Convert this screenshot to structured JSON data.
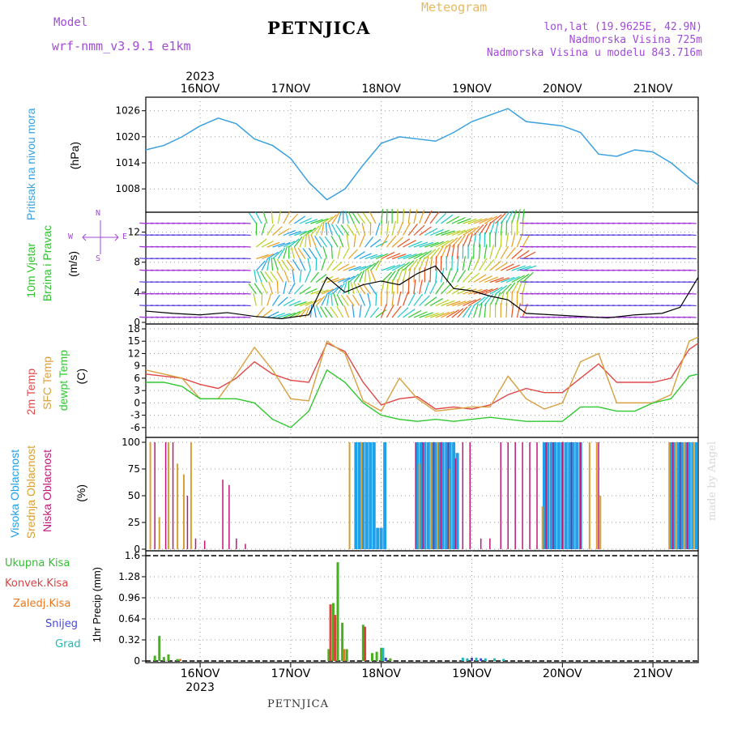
{
  "header": {
    "title": "PETNJICA",
    "model_label": "Model",
    "model_name": "wrf-nmm_v3.9.1 e1km",
    "product": "Meteogram",
    "coords": "lon,lat (19.9625E, 42.9N)",
    "elevation": "Nadmorska Visina 725m",
    "model_elevation": "Nadmorska Visina u modelu 843.716m",
    "footer": "PETNJICA",
    "credit": "made by Angel"
  },
  "time_axis": {
    "year_label": "2023",
    "days": [
      "16NOV",
      "17NOV",
      "18NOV",
      "19NOV",
      "20NOV",
      "21NOV"
    ],
    "day_positions": [
      1,
      2,
      3,
      4,
      5,
      6
    ],
    "range": [
      0.4,
      6.5
    ]
  },
  "panels": {
    "pressure": {
      "label": "Pritisak na nivou mora",
      "unit": "(hPa)"
    },
    "wind": {
      "label1": "10m Vjetar",
      "label2": "Brzina i Pravac",
      "unit": "(m/s)",
      "compass_n": "N",
      "compass_s": "S",
      "compass_w": "W",
      "compass_e": "E"
    },
    "temp": {
      "label1": "2m Temp",
      "label2": "SFC Temp",
      "label3": "dewpt Temp",
      "unit": "(C)"
    },
    "cloud": {
      "label1": "Visoka Oblacnost",
      "label2": "Srednja Oblacnost",
      "label3": "Niska Oblacnost",
      "unit": "(%)"
    },
    "precip": {
      "legend": [
        "Ukupna Kisa",
        "Konvek.Kisa",
        "Zaledj.Kisa",
        "Snijeg",
        "Grad"
      ],
      "ylabel": "1hr Precip (mm)"
    }
  },
  "colors": {
    "pressure": "#3aa0e0",
    "t2m": "#e04848",
    "tsfc": "#d8a040",
    "dewpt": "#30c830",
    "cloud_high": "#20a0e8",
    "cloud_mid": "#d8a030",
    "cloud_low": "#c01878",
    "rain_total": "#48b020",
    "rain_conv": "#e04040",
    "rain_frz": "#e87820",
    "snow": "#4848d8",
    "hail": "#20b8b8",
    "grid": "#9a9a9a",
    "text_purple": "#a24bd8"
  },
  "chart_data": [
    {
      "type": "line",
      "name": "pressure",
      "ylim": [
        1003,
        1028
      ],
      "yticks": [
        1008,
        1014,
        1020,
        1026
      ],
      "x": [
        0.4,
        0.6,
        0.8,
        1.0,
        1.2,
        1.4,
        1.6,
        1.8,
        2.0,
        2.2,
        2.4,
        2.6,
        2.8,
        3.0,
        3.2,
        3.4,
        3.6,
        3.8,
        4.0,
        4.2,
        4.4,
        4.6,
        4.8,
        5.0,
        5.2,
        5.4,
        5.6,
        5.8,
        6.0,
        6.2,
        6.4,
        6.5
      ],
      "series": [
        {
          "values": [
            1017,
            1018,
            1020,
            1022.5,
            1024.3,
            1023,
            1019.5,
            1018,
            1015,
            1009.5,
            1005.5,
            1008,
            1013.5,
            1018.5,
            1020,
            1019.5,
            1019,
            1021,
            1023.5,
            1025,
            1026.5,
            1023.5,
            1023,
            1022.5,
            1021,
            1016,
            1015.5,
            1017,
            1016.5,
            1014,
            1010.5,
            1009
          ]
        }
      ]
    },
    {
      "type": "line",
      "name": "wind_speed",
      "ylim": [
        0,
        14
      ],
      "yticks": [
        0,
        4,
        8,
        12
      ],
      "x": [
        0.4,
        0.7,
        1.0,
        1.3,
        1.6,
        1.9,
        2.2,
        2.4,
        2.6,
        2.8,
        3.0,
        3.2,
        3.4,
        3.6,
        3.8,
        4.0,
        4.2,
        4.4,
        4.6,
        4.9,
        5.2,
        5.5,
        5.8,
        6.1,
        6.3,
        6.5
      ],
      "series": [
        {
          "values": [
            1.5,
            1.2,
            1.0,
            1.3,
            0.8,
            0.5,
            1.0,
            6.0,
            4.0,
            5.0,
            5.5,
            5.0,
            6.5,
            7.5,
            4.5,
            4.2,
            3.5,
            3.0,
            1.2,
            1.0,
            0.8,
            0.6,
            1.0,
            1.2,
            2.0,
            6.0
          ]
        }
      ]
    },
    {
      "type": "line",
      "name": "temperature",
      "ylim": [
        -8,
        18
      ],
      "yticks": [
        -6,
        -3,
        0,
        3,
        6,
        9,
        12,
        15,
        18
      ],
      "x": [
        0.4,
        0.6,
        0.8,
        1.0,
        1.2,
        1.4,
        1.6,
        1.8,
        2.0,
        2.2,
        2.4,
        2.6,
        2.8,
        3.0,
        3.2,
        3.4,
        3.6,
        3.8,
        4.0,
        4.2,
        4.4,
        4.6,
        4.8,
        5.0,
        5.2,
        5.4,
        5.6,
        5.8,
        6.0,
        6.2,
        6.4,
        6.5
      ],
      "series": [
        {
          "name": "2m Temp",
          "values": [
            7,
            6.5,
            6,
            4.5,
            3.5,
            6,
            10,
            7,
            5.5,
            5,
            14.5,
            12.5,
            5,
            -0.5,
            1,
            1.5,
            -1.5,
            -1,
            -1.5,
            -0.5,
            2,
            3.5,
            2.5,
            2.5,
            6,
            9.5,
            5,
            5,
            5,
            6,
            13,
            14.5
          ]
        },
        {
          "name": "SFC Temp",
          "values": [
            8,
            7,
            6,
            1,
            1,
            7,
            13.5,
            8,
            1,
            0.5,
            15,
            12,
            0.5,
            -2,
            6,
            1,
            -2,
            -1.5,
            -1,
            -1,
            6.5,
            1,
            -1.5,
            0,
            10,
            12,
            0,
            0,
            0,
            2,
            15,
            16
          ]
        },
        {
          "name": "dewpt Temp",
          "values": [
            5,
            5,
            4,
            1,
            1,
            1,
            0,
            -4,
            -6,
            -2,
            8,
            5,
            0,
            -3,
            -4,
            -4.5,
            -4,
            -4.5,
            -4,
            -3.5,
            -4,
            -4.5,
            -4.5,
            -4.5,
            -1,
            -1,
            -2,
            -2,
            0,
            1,
            6.5,
            7
          ]
        }
      ]
    },
    {
      "type": "bar",
      "name": "cloud_cover",
      "ylim": [
        0,
        100
      ],
      "yticks": [
        0,
        25,
        50,
        75,
        100
      ],
      "series": [
        {
          "name": "Visoka Oblacnost",
          "x": [
            2.72,
            2.76,
            2.8,
            2.84,
            2.88,
            2.92,
            2.96,
            3.0,
            3.04,
            3.4,
            3.44,
            3.48,
            3.52,
            3.56,
            3.6,
            3.64,
            3.68,
            3.72,
            3.76,
            3.8,
            3.84,
            4.8,
            4.84,
            4.88,
            4.92,
            4.96,
            5.0,
            5.04,
            5.08,
            5.12,
            5.16,
            5.2,
            6.2,
            6.24,
            6.28,
            6.32,
            6.36,
            6.4,
            6.44,
            6.48
          ],
          "values": [
            100,
            100,
            100,
            100,
            100,
            100,
            20,
            20,
            100,
            100,
            100,
            100,
            100,
            100,
            100,
            100,
            100,
            100,
            100,
            100,
            90,
            100,
            100,
            100,
            100,
            100,
            100,
            100,
            100,
            100,
            100,
            100,
            100,
            100,
            100,
            100,
            100,
            100,
            100,
            100
          ]
        },
        {
          "name": "Srednja Oblacnost",
          "x": [
            0.45,
            0.55,
            0.65,
            0.75,
            0.82,
            0.9,
            2.65,
            2.78,
            3.42,
            3.55,
            3.62,
            3.75,
            4.78,
            5.3,
            5.38,
            5.42,
            6.18,
            6.25,
            6.35,
            6.45
          ],
          "values": [
            100,
            30,
            100,
            80,
            70,
            100,
            100,
            100,
            80,
            100,
            100,
            75,
            40,
            100,
            100,
            50,
            100,
            100,
            100,
            100
          ]
        },
        {
          "name": "Niska Oblacnost",
          "x": [
            0.5,
            0.62,
            0.7,
            0.86,
            0.95,
            1.05,
            1.25,
            1.32,
            1.4,
            1.5,
            3.38,
            3.46,
            3.58,
            3.66,
            3.74,
            3.82,
            3.9,
            3.98,
            4.1,
            4.2,
            4.32,
            4.4,
            4.48,
            4.56,
            4.64,
            4.72,
            4.82,
            4.9,
            5.0,
            5.1,
            5.2,
            5.4,
            6.22,
            6.3,
            6.38
          ],
          "values": [
            100,
            100,
            100,
            50,
            10,
            8,
            65,
            60,
            10,
            5,
            100,
            100,
            100,
            100,
            100,
            85,
            100,
            100,
            10,
            10,
            100,
            100,
            100,
            100,
            100,
            100,
            100,
            100,
            100,
            100,
            100,
            100,
            100,
            100,
            100
          ]
        }
      ]
    },
    {
      "type": "bar",
      "name": "precipitation",
      "ylim": [
        0,
        1.6
      ],
      "yticks": [
        0,
        0.32,
        0.64,
        0.96,
        1.28,
        1.6
      ],
      "series": [
        {
          "name": "Ukupna Kisa",
          "x": [
            0.5,
            0.55,
            0.6,
            0.65,
            0.75,
            2.42,
            2.47,
            2.52,
            2.57,
            2.62,
            2.8,
            2.9,
            2.95,
            3.0,
            3.1
          ],
          "values": [
            0.08,
            0.38,
            0.06,
            0.1,
            0.03,
            0.18,
            0.88,
            1.5,
            0.58,
            0.18,
            0.55,
            0.12,
            0.14,
            0.2,
            0.04
          ]
        },
        {
          "name": "Konvek.Kisa",
          "x": [
            2.44,
            2.49,
            2.82
          ],
          "values": [
            0.86,
            0.7,
            0.52
          ]
        },
        {
          "name": "Zaledj.Kisa",
          "x": [
            0.78,
            2.59
          ],
          "values": [
            0.03,
            0.18
          ]
        },
        {
          "name": "Snijeg",
          "x": [
            3.05,
            4.0,
            4.1
          ],
          "values": [
            0.05,
            0.05,
            0.04
          ]
        },
        {
          "name": "Grad",
          "x": [
            3.02,
            3.9,
            3.95,
            4.05,
            4.15,
            4.25,
            4.35
          ],
          "values": [
            0.2,
            0.05,
            0.04,
            0.05,
            0.04,
            0.04,
            0.03
          ]
        }
      ]
    }
  ]
}
